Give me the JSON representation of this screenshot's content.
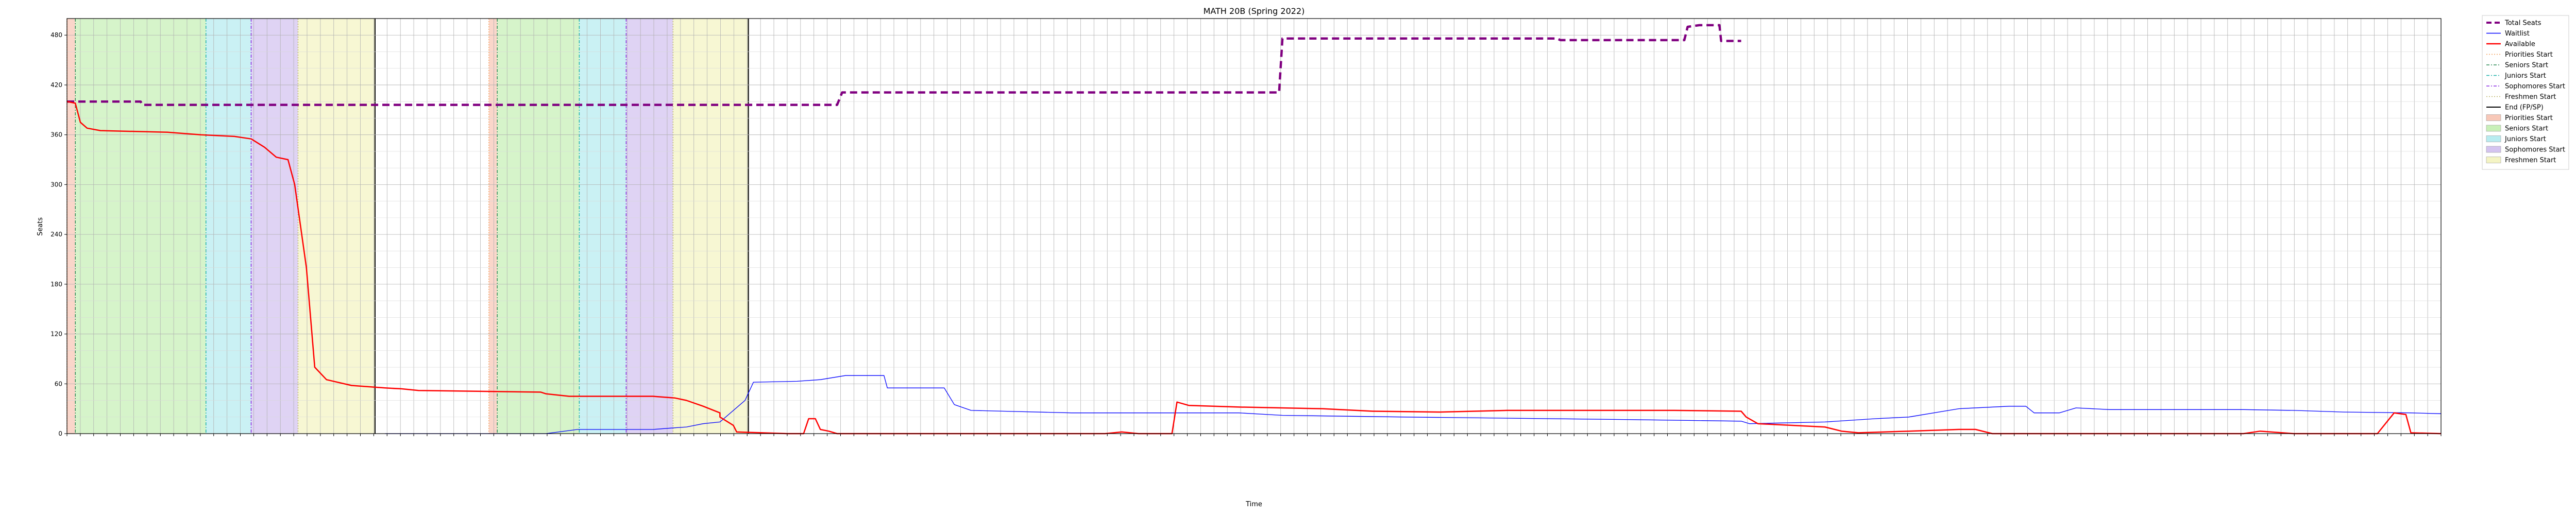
{
  "chart_data": {
    "type": "line",
    "title": "MATH 20B (Spring 2022)",
    "xlabel": "Time",
    "ylabel": "Seats",
    "ylim": [
      0,
      500
    ],
    "yticks": [
      0,
      60,
      120,
      180,
      240,
      300,
      360,
      420,
      480
    ],
    "grid": true,
    "legend_placement": "outside-right",
    "x_tick_labels_note": "dense rotated date-time tick labels, one per ~8 hours, illegible at this resolution",
    "series": [
      {
        "name": "Total Seats",
        "color": "#800080",
        "style": "dashed",
        "points": [
          [
            0,
            400
          ],
          [
            0.016,
            400
          ],
          [
            0.044,
            400
          ],
          [
            0.045,
            396
          ],
          [
            0.46,
            396
          ],
          [
            0.463,
            411
          ],
          [
            0.724,
            411
          ],
          [
            0.726,
            476
          ],
          [
            0.89,
            476
          ],
          [
            0.892,
            474
          ],
          [
            0.966,
            474
          ],
          [
            0.968,
            490
          ],
          [
            0.975,
            492
          ],
          [
            0.987,
            492
          ],
          [
            0.988,
            473
          ],
          [
            1.0,
            473
          ]
        ]
      },
      {
        "name": "Waitlist",
        "color": "#0000ff",
        "style": "solid",
        "points": [
          [
            0.19,
            0
          ],
          [
            0.286,
            0
          ],
          [
            0.305,
            5
          ],
          [
            0.35,
            5
          ],
          [
            0.363,
            7
          ],
          [
            0.37,
            8
          ],
          [
            0.38,
            12
          ],
          [
            0.39,
            14
          ],
          [
            0.405,
            40
          ],
          [
            0.41,
            62
          ],
          [
            0.436,
            63
          ],
          [
            0.45,
            65
          ],
          [
            0.465,
            70
          ],
          [
            0.488,
            70
          ],
          [
            0.49,
            55
          ],
          [
            0.524,
            55
          ],
          [
            0.53,
            35
          ],
          [
            0.54,
            28
          ],
          [
            0.56,
            27
          ],
          [
            0.6,
            25
          ],
          [
            0.7,
            25
          ],
          [
            0.726,
            22
          ],
          [
            0.8,
            20
          ],
          [
            0.93,
            17
          ],
          [
            1.0,
            15
          ],
          [
            1.005,
            12
          ],
          [
            1.05,
            14
          ],
          [
            1.08,
            18
          ],
          [
            1.1,
            20
          ],
          [
            1.13,
            30
          ],
          [
            1.16,
            33
          ],
          [
            1.17,
            33
          ],
          [
            1.175,
            25
          ],
          [
            1.19,
            25
          ],
          [
            1.2,
            31
          ],
          [
            1.22,
            29
          ],
          [
            1.3,
            29
          ],
          [
            1.33,
            28
          ],
          [
            1.36,
            26
          ],
          [
            1.4,
            25
          ],
          [
            1.418,
            24
          ]
        ]
      },
      {
        "name": "Available",
        "color": "#ff0000",
        "style": "solid",
        "points": [
          [
            0,
            400
          ],
          [
            0.005,
            398
          ],
          [
            0.008,
            375
          ],
          [
            0.012,
            368
          ],
          [
            0.02,
            365
          ],
          [
            0.06,
            363
          ],
          [
            0.08,
            360
          ],
          [
            0.1,
            358
          ],
          [
            0.11,
            355
          ],
          [
            0.118,
            345
          ],
          [
            0.125,
            333
          ],
          [
            0.132,
            330
          ],
          [
            0.136,
            300
          ],
          [
            0.143,
            200
          ],
          [
            0.148,
            80
          ],
          [
            0.155,
            65
          ],
          [
            0.17,
            58
          ],
          [
            0.19,
            55
          ],
          [
            0.2,
            54
          ],
          [
            0.21,
            52
          ],
          [
            0.283,
            50
          ],
          [
            0.286,
            48
          ],
          [
            0.3,
            45
          ],
          [
            0.35,
            45
          ],
          [
            0.363,
            43
          ],
          [
            0.37,
            40
          ],
          [
            0.38,
            33
          ],
          [
            0.39,
            25
          ],
          [
            0.39,
            20
          ],
          [
            0.398,
            10
          ],
          [
            0.4,
            2
          ],
          [
            0.43,
            0
          ],
          [
            0.44,
            0
          ],
          [
            0.443,
            18
          ],
          [
            0.447,
            18
          ],
          [
            0.45,
            5
          ],
          [
            0.455,
            3
          ],
          [
            0.46,
            0
          ],
          [
            0.62,
            0
          ],
          [
            0.63,
            2
          ],
          [
            0.64,
            0
          ],
          [
            0.66,
            0
          ],
          [
            0.663,
            38
          ],
          [
            0.67,
            34
          ],
          [
            0.7,
            32
          ],
          [
            0.75,
            30
          ],
          [
            0.78,
            27
          ],
          [
            0.82,
            26
          ],
          [
            0.86,
            28
          ],
          [
            0.92,
            28
          ],
          [
            0.96,
            28
          ],
          [
            1.0,
            27
          ],
          [
            1.003,
            20
          ],
          [
            1.01,
            12
          ],
          [
            1.03,
            10
          ],
          [
            1.05,
            8
          ],
          [
            1.06,
            3
          ],
          [
            1.07,
            1
          ],
          [
            1.1,
            3
          ],
          [
            1.13,
            5
          ],
          [
            1.14,
            5
          ],
          [
            1.15,
            0
          ],
          [
            1.3,
            0
          ],
          [
            1.31,
            3
          ],
          [
            1.33,
            0
          ],
          [
            1.38,
            0
          ],
          [
            1.39,
            25
          ],
          [
            1.397,
            23
          ],
          [
            1.4,
            1
          ],
          [
            1.418,
            0
          ]
        ]
      }
    ],
    "x_domain": [
      0,
      1.418
    ],
    "phases": [
      {
        "name": "Priorities Start",
        "color": "#f8c8b8",
        "start": 0.0,
        "end": 0.005
      },
      {
        "name": "Seniors Start",
        "color": "#c8f0b8",
        "start": 0.005,
        "end": 0.083
      },
      {
        "name": "Juniors Start",
        "color": "#b8ecf0",
        "start": 0.083,
        "end": 0.11
      },
      {
        "name": "Sophomores Start",
        "color": "#d4c4f0",
        "start": 0.11,
        "end": 0.138
      },
      {
        "name": "Freshmen Start",
        "color": "#f4f4c4",
        "start": 0.138,
        "end": 0.184
      },
      {
        "name": "Priorities Start",
        "color": "#f8c8b8",
        "start": 0.252,
        "end": 0.257
      },
      {
        "name": "Seniors Start",
        "color": "#c8f0b8",
        "start": 0.257,
        "end": 0.306
      },
      {
        "name": "Juniors Start",
        "color": "#b8ecf0",
        "start": 0.306,
        "end": 0.334
      },
      {
        "name": "Sophomores Start",
        "color": "#d4c4f0",
        "start": 0.334,
        "end": 0.362
      },
      {
        "name": "Freshmen Start",
        "color": "#f4f4c4",
        "start": 0.362,
        "end": 0.407
      }
    ],
    "end_lines": [
      0.184,
      0.407
    ],
    "legend": [
      {
        "label": "Total Seats",
        "kind": "line",
        "color": "#800080",
        "dash": "10,6",
        "width": 4
      },
      {
        "label": "Waitlist",
        "kind": "line",
        "color": "#0000ff",
        "dash": "",
        "width": 1.5
      },
      {
        "label": "Available",
        "kind": "line",
        "color": "#ff0000",
        "dash": "",
        "width": 2.5
      },
      {
        "label": "Priorities Start",
        "kind": "line",
        "color": "#f4a460",
        "dash": "2,3",
        "width": 1.5
      },
      {
        "label": "Seniors Start",
        "kind": "line",
        "color": "#2e8b57",
        "dash": "6,3,2,3",
        "width": 1.5
      },
      {
        "label": "Juniors Start",
        "kind": "line",
        "color": "#20b2aa",
        "dash": "6,3,2,3",
        "width": 1.5
      },
      {
        "label": "Sophomores Start",
        "kind": "line",
        "color": "#8a2be2",
        "dash": "6,3,2,3",
        "width": 1.5
      },
      {
        "label": "Freshmen Start",
        "kind": "line",
        "color": "#bdb76b",
        "dash": "2,3",
        "width": 1.5
      },
      {
        "label": "End (FP/SP)",
        "kind": "line",
        "color": "#000000",
        "dash": "",
        "width": 2
      },
      {
        "label": "Priorities Start",
        "kind": "patch",
        "color": "#f8c8b8"
      },
      {
        "label": "Seniors Start",
        "kind": "patch",
        "color": "#c8f0b8"
      },
      {
        "label": "Juniors Start",
        "kind": "patch",
        "color": "#b8ecf0"
      },
      {
        "label": "Sophomores Start",
        "kind": "patch",
        "color": "#d4c4f0"
      },
      {
        "label": "Freshmen Start",
        "kind": "patch",
        "color": "#f4f4c4"
      }
    ]
  }
}
